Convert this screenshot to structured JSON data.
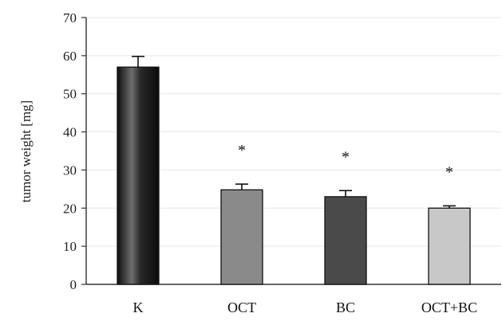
{
  "chart_data": {
    "type": "bar",
    "title": "",
    "xlabel": "",
    "ylabel": "tumor weight [mg]",
    "ylim": [
      0,
      70
    ],
    "yticks": [
      0,
      10,
      20,
      30,
      40,
      50,
      60,
      70
    ],
    "grid": true,
    "legend": "none",
    "categories": [
      "K",
      "OCT",
      "BC",
      "OCT+BC"
    ],
    "values": [
      57,
      24.8,
      23,
      20
    ],
    "error": [
      2.8,
      1.5,
      1.6,
      0.6
    ],
    "annotations": [
      "",
      "*",
      "*",
      "*"
    ],
    "colors": {
      "bar_K": "#1a1a1a",
      "bar_OCT": "#8a8a8a",
      "bar_BC": "#4a4a4a",
      "bar_OCT_BC": "#c8c8c8",
      "axis": "#333333",
      "grid": "#e6e6e6"
    }
  }
}
